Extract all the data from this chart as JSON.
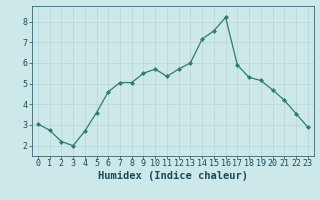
{
  "x": [
    0,
    1,
    2,
    3,
    4,
    5,
    6,
    7,
    8,
    9,
    10,
    11,
    12,
    13,
    14,
    15,
    16,
    17,
    18,
    19,
    20,
    21,
    22,
    23
  ],
  "y": [
    3.05,
    2.75,
    2.2,
    2.0,
    2.7,
    3.6,
    4.6,
    5.05,
    5.05,
    5.5,
    5.7,
    5.35,
    5.7,
    6.0,
    7.15,
    7.55,
    8.2,
    5.9,
    5.3,
    5.15,
    4.7,
    4.2,
    3.55,
    2.9
  ],
  "line_color": "#2e7d6e",
  "bg_color": "#cce8e8",
  "grid_color": "#b8d4d4",
  "xlabel": "Humidex (Indice chaleur)",
  "xlim": [
    -0.5,
    23.5
  ],
  "ylim": [
    1.5,
    8.75
  ],
  "yticks": [
    2,
    3,
    4,
    5,
    6,
    7,
    8
  ],
  "xticks": [
    0,
    1,
    2,
    3,
    4,
    5,
    6,
    7,
    8,
    9,
    10,
    11,
    12,
    13,
    14,
    15,
    16,
    17,
    18,
    19,
    20,
    21,
    22,
    23
  ],
  "marker": "D",
  "marker_size": 2.0,
  "line_width": 0.9,
  "xlabel_fontsize": 7.5,
  "tick_fontsize": 6.0,
  "tick_color": "#1a4a5a",
  "xlabel_color": "#1a4a5a"
}
